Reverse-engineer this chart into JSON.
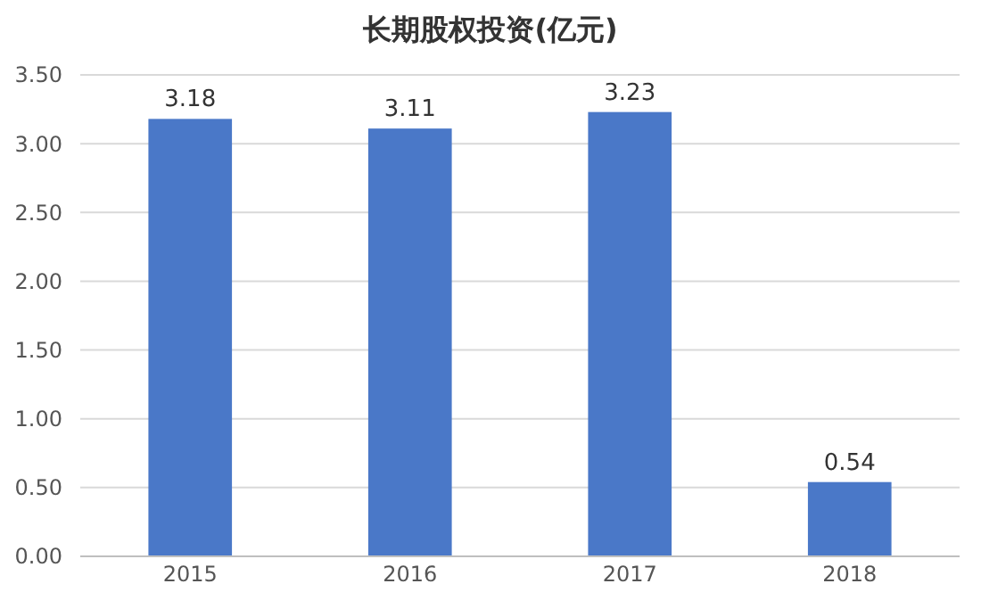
{
  "chart_data": {
    "type": "bar",
    "title": "长期股权投资(亿元)",
    "categories": [
      "2015",
      "2016",
      "2017",
      "2018"
    ],
    "values": [
      3.18,
      3.11,
      3.23,
      0.54
    ],
    "color": "#4a78c8",
    "ylim": [
      0,
      3.5
    ],
    "yticks": [
      {
        "value": 0,
        "label": "0.00"
      },
      {
        "value": 0.5,
        "label": "0.50"
      },
      {
        "value": 1,
        "label": "1.00"
      },
      {
        "value": 1.5,
        "label": "1.50"
      },
      {
        "value": 2,
        "label": "2.00"
      },
      {
        "value": 2.5,
        "label": "2.50"
      },
      {
        "value": 3,
        "label": "3.00"
      },
      {
        "value": 3.5,
        "label": "3.50"
      }
    ],
    "grid": "y",
    "data_labels": true
  }
}
